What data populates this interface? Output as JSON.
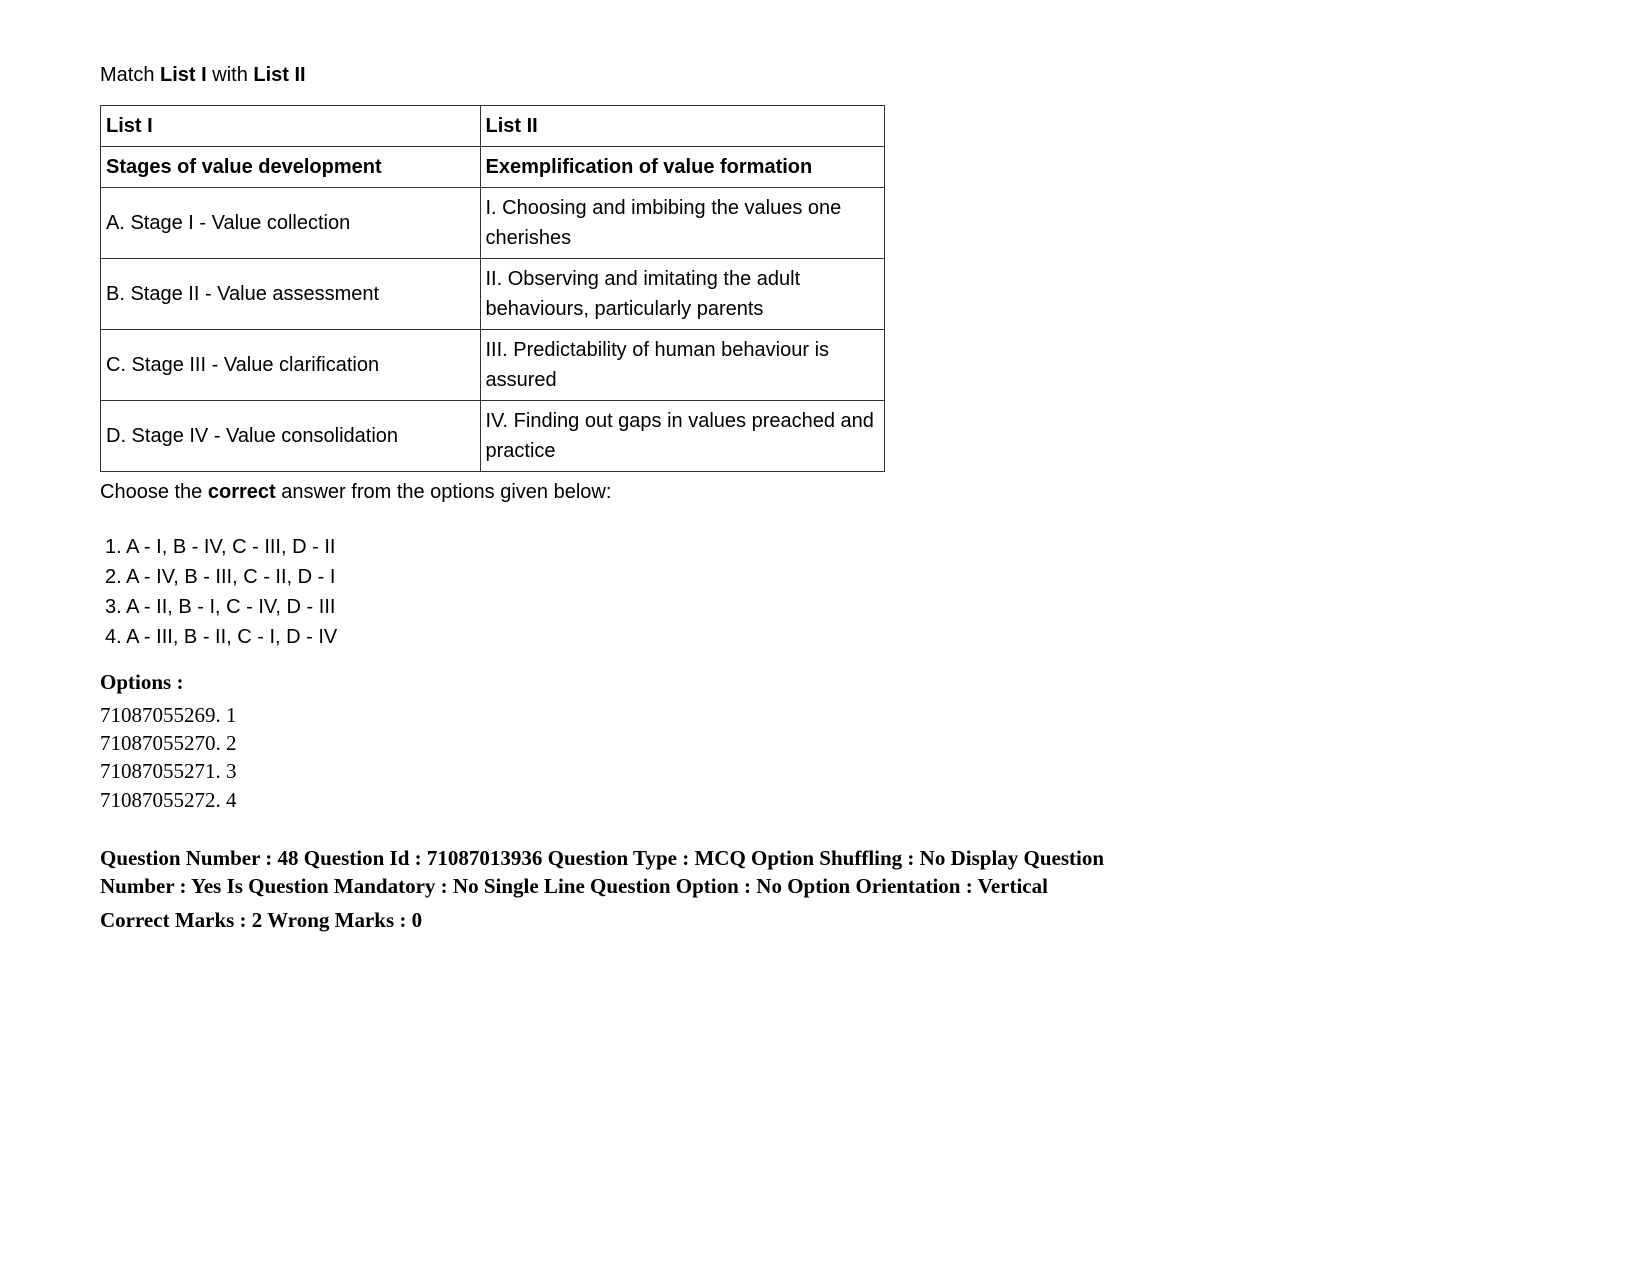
{
  "prompt_prefix": "Match ",
  "prompt_bold1": "List I",
  "prompt_mid": " with ",
  "prompt_bold2": "List II",
  "table": {
    "header_row": [
      "List I",
      "List II"
    ],
    "subheader_row": [
      "Stages of value development",
      "Exemplification of value formation"
    ],
    "rows": [
      [
        "A. Stage I - Value collection",
        "I. Choosing and imbibing the values one cherishes"
      ],
      [
        "B. Stage II - Value assessment",
        "II. Observing and imitating the adult behaviours, particularly parents"
      ],
      [
        "C. Stage III - Value clarification",
        "III. Predictability of human behaviour is assured"
      ],
      [
        "D. Stage IV - Value consolidation",
        "IV. Finding out gaps in values preached and practice"
      ]
    ]
  },
  "choose_prefix": "Choose the ",
  "choose_bold": "correct",
  "choose_suffix": " answer from the options given below:",
  "answer_options": [
    "1. A - I, B - IV, C - III, D - II",
    "2. A - IV, B - III, C - II, D - I",
    "3. A - II, B - I, C - IV, D - III",
    "4. A - III, B - II, C - I, D - IV"
  ],
  "options_label": "Options :",
  "options_list": [
    "71087055269. 1",
    "71087055270. 2",
    "71087055271. 3",
    "71087055272. 4"
  ],
  "question_meta": "Question Number : 48 Question Id : 71087013936 Question Type : MCQ Option Shuffling : No Display Question Number : Yes Is Question Mandatory : No Single Line Question Option : No Option Orientation : Vertical",
  "marks_line": "Correct Marks : 2 Wrong Marks : 0"
}
